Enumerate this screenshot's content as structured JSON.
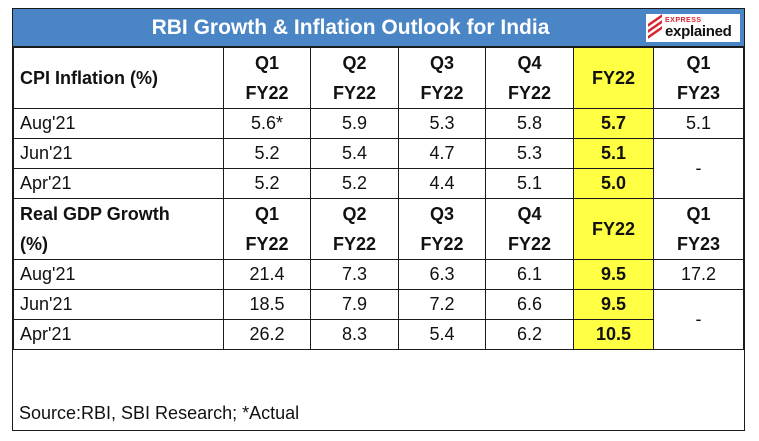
{
  "title": "RBI Growth & Inflation Outlook for India",
  "logo": {
    "small": "EXPRESS",
    "big": "explained"
  },
  "colors": {
    "title_bg": "#4a86c6",
    "highlight": "#ffff44",
    "logo_red": "#d9232d"
  },
  "cpi": {
    "label": "CPI Inflation (%)",
    "columns": [
      {
        "q": "Q1",
        "fy": "FY22"
      },
      {
        "q": "Q2",
        "fy": "FY22"
      },
      {
        "q": "Q3",
        "fy": "FY22"
      },
      {
        "q": "Q4",
        "fy": "FY22"
      }
    ],
    "fy_col": "FY22",
    "next_col": {
      "q": "Q1",
      "fy": "FY23"
    },
    "rows": [
      {
        "label": "Aug'21",
        "values": [
          "5.6*",
          "5.9",
          "5.3",
          "5.8"
        ],
        "fy": "5.7",
        "next": "5.1"
      },
      {
        "label": "Jun'21",
        "values": [
          "5.2",
          "5.4",
          "4.7",
          "5.3"
        ],
        "fy": "5.1",
        "next": "-"
      },
      {
        "label": "Apr'21",
        "values": [
          "5.2",
          "5.2",
          "4.4",
          "5.1"
        ],
        "fy": "5.0"
      }
    ]
  },
  "gdp": {
    "label_line1": "Real GDP Growth",
    "label_line2": "(%)",
    "columns": [
      {
        "q": "Q1",
        "fy": "FY22"
      },
      {
        "q": "Q2",
        "fy": "FY22"
      },
      {
        "q": "Q3",
        "fy": "FY22"
      },
      {
        "q": "Q4",
        "fy": "FY22"
      }
    ],
    "fy_col": "FY22",
    "next_col": {
      "q": "Q1",
      "fy": "FY23"
    },
    "rows": [
      {
        "label": "Aug'21",
        "values": [
          "21.4",
          "7.3",
          "6.3",
          "6.1"
        ],
        "fy": "9.5",
        "next": "17.2"
      },
      {
        "label": "Jun'21",
        "values": [
          "18.5",
          "7.9",
          "7.2",
          "6.6"
        ],
        "fy": "9.5",
        "next": "-"
      },
      {
        "label": "Apr'21",
        "values": [
          "26.2",
          "8.3",
          "5.4",
          "6.2"
        ],
        "fy": "10.5"
      }
    ]
  },
  "source": "Source:RBI, SBI Research; *Actual"
}
